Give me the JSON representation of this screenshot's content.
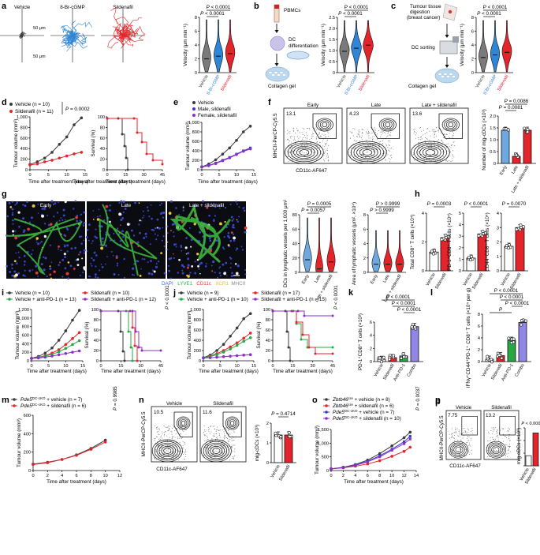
{
  "panels": {
    "a": {
      "letter": "a",
      "conditions": [
        "Vehicle",
        "8-Br-cGMP",
        "Sildenafil"
      ],
      "scale_y": "50 μm",
      "scale_x": "50 μm",
      "ylabel": "Velocity (μm min⁻¹)",
      "yticks": [
        "0",
        "2",
        "4",
        "6",
        "8"
      ],
      "xcats": [
        "Vehicle",
        "8-Br-cGMP",
        "Sildenafil"
      ],
      "p1": "P < 0.0001",
      "p2": "P < 0.0001"
    },
    "b": {
      "letter": "b",
      "steps": [
        "PBMCs",
        "DC differentiation",
        "Collagen gel"
      ],
      "ylabel": "Velocity (μm min⁻¹)",
      "yticks": [
        "0",
        "0.5",
        "1.0",
        "1.5",
        "2.0",
        "2.5"
      ],
      "xcats": [
        "Vehicle",
        "8-Br-cGMP",
        "Sildenafil"
      ],
      "p1": "P < 0.0001",
      "p2": "P < 0.0001"
    },
    "c": {
      "letter": "c",
      "steps": [
        "Tumour tissue digestion (breast cancer)",
        "DC sorting",
        "Collagen gel"
      ],
      "ylabel": "Velocity (μm min⁻¹)",
      "yticks": [
        "0",
        "2",
        "4",
        "6",
        "8"
      ],
      "xcats": [
        "Vehicle",
        "8-Br-cGMP",
        "Sildenafil"
      ],
      "p1": "P < 0.0001",
      "p2": "P < 0.0001"
    },
    "d": {
      "letter": "d",
      "legend": [
        "Vehicle (n = 10)",
        "Sildenafil (n = 11)"
      ],
      "p": "P = 0.0002",
      "ylabel": "Tumour volume (mm³)",
      "yticks": [
        "0",
        "200",
        "400",
        "600",
        "800",
        "1,000"
      ],
      "xticks": [
        "0",
        "5",
        "10",
        "15"
      ],
      "xlabel": "Time after treatment (days)",
      "ylabel2": "Survival (%)",
      "yticks2": [
        "0",
        "20",
        "40",
        "60",
        "80",
        "100"
      ],
      "xticks2": [
        "0",
        "15",
        "30",
        "45"
      ]
    },
    "e": {
      "letter": "e",
      "legend": [
        "Vehicle",
        "Male, sildenafil",
        "Female, sildenafil"
      ],
      "ylabel": "Tumour volume (mm³)",
      "yticks": [
        "0",
        "200",
        "400",
        "600",
        "800",
        "1,000"
      ],
      "xticks": [
        "0",
        "5",
        "10",
        "15"
      ],
      "xlabel": "Time after treatment (days)"
    },
    "f": {
      "letter": "f",
      "gates": [
        "Early",
        "Late",
        "Late + sildenafil"
      ],
      "pcts": [
        "13.1",
        "4.23",
        "13.6"
      ],
      "ylabel": "MHCII-PerCP-Cy5.5",
      "xlabel": "CD11c-AF647",
      "bar_ylabel": "Number of mig-cDCs (×10³)",
      "bar_yticks": [
        "0",
        "0.5",
        "1.0",
        "1.5",
        "2.0"
      ],
      "xcats": [
        "Early",
        "Late",
        "Late + sildenafil"
      ],
      "p1": "P = 0.0086",
      "p2": "P = 0.0081"
    },
    "g": {
      "letter": "g",
      "titles": [
        "Early",
        "Late",
        "Late + sildenafil"
      ],
      "stain": [
        "DAPI",
        "LYVE1",
        "CD11c",
        "XCR1",
        "MHCII"
      ],
      "v1_ylabel": "DCs in lymphatic vessels per 1,000 μm²",
      "v1_yticks": [
        "0",
        "20",
        "40",
        "60",
        "80"
      ],
      "v1_xcats": [
        "Early",
        "Late",
        "Late + sildenafil"
      ],
      "v1_p1": "P = 0.0005",
      "v1_p2": "P = 0.0057",
      "v2_ylabel": "Area of lymphatic vessels (μm², ×10⁴)",
      "v2_yticks": [
        "0",
        "2",
        "4",
        "6",
        "8"
      ],
      "v2_xcats": [
        "Early",
        "Late",
        "Late + sildenafil"
      ],
      "v2_p1": "P > 0.9999",
      "v2_p2": "P > 0.9999"
    },
    "h": {
      "letter": "h",
      "xcats": [
        "Vehicle",
        "Sildenafil"
      ],
      "b1_ylabel": "Total CD8⁺ T cells (×10⁴)",
      "b1_p": "P = 0.0003",
      "b1_yticks": [
        "0",
        "2",
        "4"
      ],
      "b2_ylabel": "PD-1⁺CD8⁺ T cells (×10⁴)",
      "b2_p": "P < 0.0001",
      "b2_yticks": [
        "0",
        "1",
        "2",
        "3",
        "4",
        "5"
      ],
      "b3_ylabel": "CD44⁺CD8⁺ T cells (×10⁴)",
      "b3_p": "P = 0.0070",
      "b3_yticks": [
        "0",
        "1",
        "2",
        "3",
        "4"
      ]
    },
    "i": {
      "letter": "i",
      "legend": [
        "Vehicle (n = 10)",
        "Vehicle + anti-PD-1 (n = 13)",
        "Sildenafil (n = 10)",
        "Sildenafil + anti-PD-1 (n = 12)"
      ],
      "p": "P < 0.0001",
      "ylabel": "Tumour volume (mm³)",
      "yticks": [
        "0",
        "200",
        "400",
        "600",
        "800",
        "1,000",
        "1,200"
      ],
      "xticks": [
        "0",
        "5",
        "10",
        "15"
      ],
      "xlabel": "Time after treatment (days)",
      "ylabel2": "Survival (%)",
      "yticks2": [
        "0",
        "20",
        "40",
        "60",
        "80",
        "100"
      ],
      "xticks2": [
        "0",
        "15",
        "30",
        "45"
      ]
    },
    "j": {
      "letter": "j",
      "legend": [
        "Vehicle (n = 9)",
        "Vehicle + anti-PD-1 (n = 10)",
        "Sildenafil (n = 17)",
        "Sildenafil + anti-PD-1 (n = 15)"
      ],
      "p": "P < 0.0001",
      "ylabel": "Tumour volume (mm³)",
      "yticks": [
        "0",
        "200",
        "400",
        "600",
        "800",
        "1,000"
      ],
      "xticks": [
        "0",
        "5",
        "10",
        "15"
      ],
      "xlabel": "Time after treatment (days)",
      "ylabel2": "Survival (%)",
      "yticks2": [
        "0",
        "20",
        "40",
        "60",
        "80",
        "100"
      ],
      "xticks2": [
        "0",
        "15",
        "30",
        "45"
      ]
    },
    "k": {
      "letter": "k",
      "ylabel": "PD-1⁺CD8⁺ T cells (×10³)",
      "yticks": [
        "0",
        "2",
        "4",
        "6"
      ],
      "xcats": [
        "Vehicle",
        "Sildenafil",
        "Anti-PD-1",
        "Combo"
      ],
      "pvals": [
        "P < 0.0001",
        "P < 0.0001",
        "P < 0.0001",
        "P < 0.0001"
      ]
    },
    "l": {
      "letter": "l",
      "ylabel": "IFNγ⁺CD44⁺PD-1⁺ CD8⁺ T cells (×10⁴ per g)",
      "yticks": [
        "0",
        "2",
        "4",
        "6",
        "8"
      ],
      "xcats": [
        "Vehicle",
        "Sildenafil",
        "Anti-PD-1",
        "Combo"
      ],
      "pvals": [
        "P < 0.0001",
        "P < 0.0001",
        "P < 0.0001",
        "P < 0.0001"
      ]
    },
    "m": {
      "letter": "m",
      "legend": [
        "Pde5DC-cKO + vehicle (n = 7)",
        "Pde5DC-cKO + sildenafil (n = 6)"
      ],
      "p": "P = 0.9985",
      "ylabel": "Tumour volume (mm³)",
      "yticks": [
        "0",
        "200",
        "400",
        "600"
      ],
      "xticks": [
        "0",
        "2",
        "4",
        "6",
        "8",
        "10",
        "12"
      ],
      "xlabel": "Time after treatment (days)"
    },
    "n": {
      "letter": "n",
      "gates": [
        "Vehicle",
        "Sildenafil"
      ],
      "pcts": [
        "10.5",
        "11.6"
      ],
      "ylabel": "MHCII-PerCP-Cy5.5",
      "xlabel": "CD11c-AF647",
      "bar_ylabel": "mig-cDCs (×10³)",
      "bar_yticks": [
        "0",
        "1",
        "2"
      ],
      "xcats": [
        "Vehicle",
        "Sildenafil"
      ],
      "p": "P = 0.4714"
    },
    "o": {
      "letter": "o",
      "legend": [
        "Zbtb46cre + vehicle (n = 8)",
        "Zbtb46cre + sildenafil (n = 6)",
        "Pde5DC-cKO + vehicle (n = 7)",
        "Pde5DC-cKO + sildenafil (n = 10)"
      ],
      "p": "P = 0.0037",
      "ylabel": "Tumour volume (mm³)",
      "yticks": [
        "0",
        "500",
        "1,000",
        "1,500"
      ],
      "xticks": [
        "0",
        "2",
        "4",
        "6",
        "8",
        "10",
        "12",
        "14"
      ],
      "xlabel": "Time after treatment (days)"
    },
    "p": {
      "letter": "p",
      "gates": [
        "Vehicle",
        "Sildenafil"
      ],
      "pcts": [
        "7.75",
        "13.2"
      ],
      "ylabel": "MHCII-PerCP-Cy5.5",
      "xlabel": "CD11c-AF647",
      "bar_ylabel": "mig-cDCs (×10³)",
      "bar_yticks": [
        "0",
        "0.5",
        "1.0",
        "1.5"
      ],
      "xcats": [
        "Vehicle",
        "Sildenafil"
      ],
      "p": "P < 0.0001"
    }
  },
  "colors": {
    "vehicle": "#3a3a3a",
    "cgmp": "#2f86d6",
    "sildenafil": "#e3242b",
    "green": "#27a844",
    "purple": "#8b2fc9",
    "blue": "#3b37c9"
  },
  "chart_data": [
    {
      "type": "bar",
      "panel": "f",
      "categories": [
        "Early",
        "Late",
        "Late + sildenafil"
      ],
      "values": [
        1.4,
        0.3,
        1.4
      ],
      "ylim": [
        0,
        2
      ]
    },
    {
      "type": "bar",
      "panel": "h1",
      "categories": [
        "Vehicle",
        "Sildenafil"
      ],
      "values": [
        1.3,
        2.3
      ],
      "ylim": [
        0,
        4
      ]
    },
    {
      "type": "bar",
      "panel": "h2",
      "categories": [
        "Vehicle",
        "Sildenafil"
      ],
      "values": [
        1.1,
        3.2
      ],
      "ylim": [
        0,
        5
      ]
    },
    {
      "type": "bar",
      "panel": "h3",
      "categories": [
        "Vehicle",
        "Sildenafil"
      ],
      "values": [
        1.7,
        3.0
      ],
      "ylim": [
        0,
        4
      ]
    },
    {
      "type": "bar",
      "panel": "k",
      "categories": [
        "Vehicle",
        "Sildenafil",
        "Anti-PD-1",
        "Combo"
      ],
      "values": [
        0.4,
        0.7,
        1.0,
        6.2
      ],
      "ylim": [
        0,
        7
      ]
    },
    {
      "type": "bar",
      "panel": "l",
      "categories": [
        "Vehicle",
        "Sildenafil",
        "Anti-PD-1",
        "Combo"
      ],
      "values": [
        0.4,
        1.0,
        3.6,
        6.6
      ],
      "ylim": [
        0,
        8
      ]
    },
    {
      "type": "bar",
      "panel": "n",
      "categories": [
        "Vehicle",
        "Sildenafil"
      ],
      "values": [
        1.4,
        1.4
      ],
      "ylim": [
        0,
        2
      ]
    },
    {
      "type": "bar",
      "panel": "p",
      "categories": [
        "Vehicle",
        "Sildenafil"
      ],
      "values": [
        0.4,
        1.3
      ],
      "ylim": [
        0,
        1.5
      ]
    },
    {
      "type": "line",
      "panel": "d",
      "x": [
        0,
        2,
        4,
        6,
        8,
        10,
        12,
        14
      ],
      "series": [
        {
          "name": "Vehicle (n = 10)",
          "values": [
            100,
            150,
            220,
            330,
            480,
            620,
            850,
            980
          ]
        },
        {
          "name": "Sildenafil (n = 11)",
          "values": [
            90,
            110,
            150,
            180,
            220,
            260,
            300,
            330
          ]
        }
      ],
      "ylim": [
        0,
        1000
      ]
    },
    {
      "type": "line",
      "panel": "e",
      "x": [
        0,
        2,
        4,
        6,
        8,
        10,
        12,
        14
      ],
      "series": [
        {
          "name": "Vehicle",
          "values": [
            60,
            120,
            210,
            330,
            460,
            620,
            800,
            920
          ]
        },
        {
          "name": "Male, sildenafil",
          "values": [
            60,
            90,
            140,
            200,
            260,
            330,
            400,
            460
          ]
        },
        {
          "name": "Female, sildenafil",
          "values": [
            60,
            85,
            130,
            190,
            250,
            320,
            390,
            440
          ]
        }
      ],
      "ylim": [
        0,
        1000
      ]
    }
  ]
}
